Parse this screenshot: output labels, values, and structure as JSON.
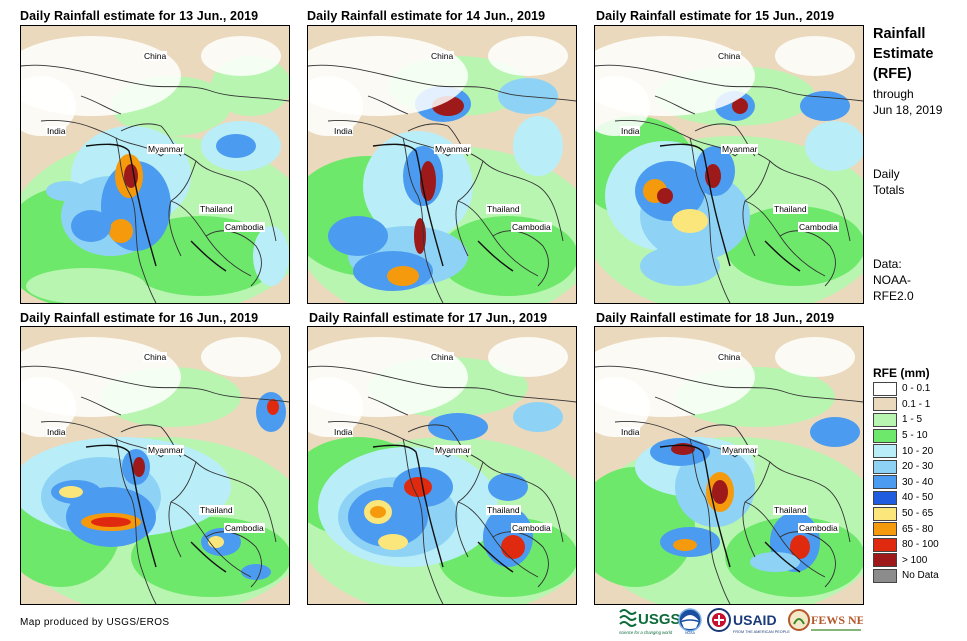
{
  "panels": [
    {
      "title": "Daily Rainfall estimate for 13 Jun., 2019"
    },
    {
      "title": "Daily Rainfall estimate for 14 Jun., 2019"
    },
    {
      "title": "Daily Rainfall estimate for 15 Jun., 2019"
    },
    {
      "title": "Daily Rainfall estimate for 16 Jun., 2019"
    },
    {
      "title": "Daily Rainfall estimate for 17 Jun., 2019"
    },
    {
      "title": "Daily Rainfall estimate for 18 Jun., 2019"
    }
  ],
  "map_labels": {
    "china": "China",
    "india": "India",
    "myanmar": "Myanmar",
    "thailand": "Thailand",
    "cambodia": "Cambodia"
  },
  "sidebar": {
    "title_line1": "Rainfall",
    "title_line2": "Estimate",
    "title_line3": "(RFE)",
    "through_label": "through",
    "through_date": "Jun 18, 2019",
    "daily_line1": "Daily",
    "daily_line2": "Totals",
    "data_line1": "Data:",
    "data_line2": "NOAA-",
    "data_line3": "RFE2.0"
  },
  "legend": {
    "title": "RFE (mm)",
    "items": [
      {
        "label": "0 - 0.1",
        "color": "#ffffff"
      },
      {
        "label": "0.1 - 1",
        "color": "#ebd9bd"
      },
      {
        "label": "1 - 5",
        "color": "#b8f5b0"
      },
      {
        "label": "5 - 10",
        "color": "#6de86a"
      },
      {
        "label": "10 - 20",
        "color": "#b9eef9"
      },
      {
        "label": "20 - 30",
        "color": "#8ed3f5"
      },
      {
        "label": "30 - 40",
        "color": "#4b9bf0"
      },
      {
        "label": "40 - 50",
        "color": "#1f5ce0"
      },
      {
        "label": "50 - 65",
        "color": "#fbe67c"
      },
      {
        "label": "65 - 80",
        "color": "#f59a0c"
      },
      {
        "label": "80 - 100",
        "color": "#e02a10"
      },
      {
        "label": "> 100",
        "color": "#9e1a1a"
      },
      {
        "label": "No Data",
        "color": "#8c8c8c"
      }
    ]
  },
  "credit": "Map produced by USGS/EROS",
  "logos": {
    "usgs": "USGS",
    "usgs_tagline": "science for a changing world",
    "noaa": "NOAA",
    "usaid": "USAID",
    "usaid_tagline": "FROM THE AMERICAN PEOPLE",
    "fewsnet": "FEWS NET"
  }
}
